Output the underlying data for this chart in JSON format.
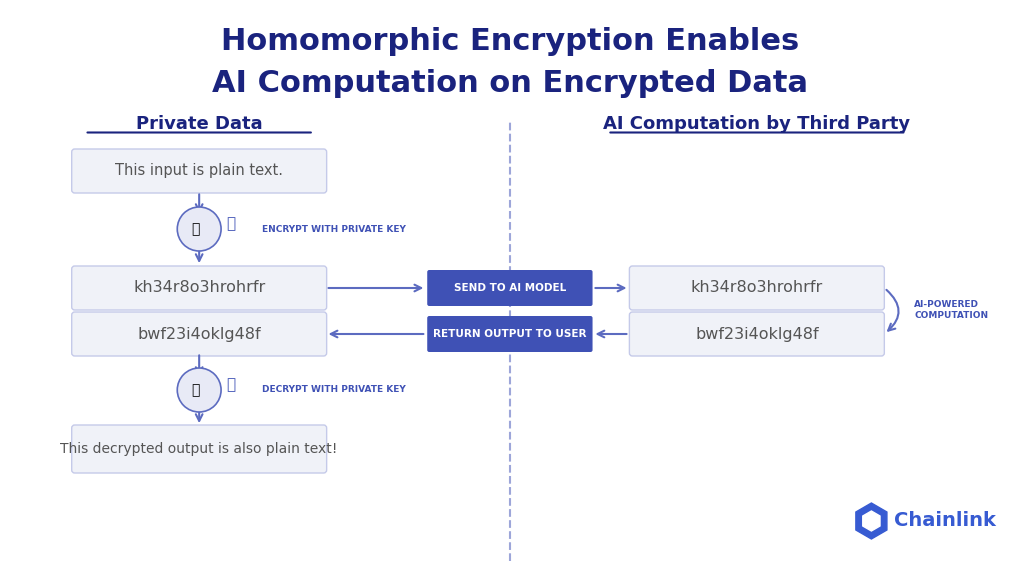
{
  "title_line1": "Homomorphic Encryption Enables",
  "title_line2": "AI Computation on Encrypted Data",
  "title_color": "#1a237e",
  "background_color": "#ffffff",
  "left_section_title": "Private Data",
  "right_section_title": "AI Computation by Third Party",
  "section_title_color": "#1a237e",
  "box_bg_color": "#f0f2f8",
  "box_border_color": "#c5cae9",
  "box_text_color": "#555555",
  "plain_text_input": "This input is plain text.",
  "encrypted_text1": "kh34r8o3hrohrfr",
  "encrypted_text2": "bwf23i4oklg48f",
  "plain_text_output": "This decrypted output is also plain text!",
  "btn_color": "#3f51b5",
  "btn_text_color": "#ffffff",
  "send_btn_label": "SEND TO AI MODEL",
  "return_btn_label": "RETURN OUTPUT TO USER",
  "encrypt_label": "ENCRYPT WITH PRIVATE KEY",
  "decrypt_label": "DECRYPT WITH PRIVATE KEY",
  "ai_computation_label": "AI-POWERED\nCOMPUTATION",
  "arrow_color": "#5c6bc0",
  "divider_color": "#5c6bc0",
  "chainlink_color": "#375bd2",
  "label_color": "#3f51b5"
}
